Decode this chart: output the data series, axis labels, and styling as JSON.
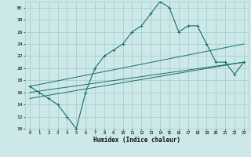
{
  "xlabel": "Humidex (Indice chaleur)",
  "bg_color": "#cce8e8",
  "grid_color": "#aacece",
  "line_color": "#1a6e6a",
  "xlim": [
    -0.5,
    23.5
  ],
  "ylim": [
    10,
    31
  ],
  "yticks": [
    10,
    12,
    14,
    16,
    18,
    20,
    22,
    24,
    26,
    28,
    30
  ],
  "xticks": [
    0,
    1,
    2,
    3,
    4,
    5,
    6,
    7,
    8,
    9,
    10,
    11,
    12,
    13,
    14,
    15,
    16,
    17,
    18,
    19,
    20,
    21,
    22,
    23
  ],
  "series1_x": [
    0,
    1,
    2,
    3,
    4,
    5,
    6,
    7,
    8,
    9,
    10,
    11,
    12,
    13,
    14,
    15,
    16,
    17,
    18,
    19,
    20,
    21,
    22,
    23
  ],
  "series1_y": [
    17,
    16,
    15,
    14,
    12,
    10,
    16,
    20,
    22,
    23,
    24,
    26,
    27,
    29,
    31,
    30,
    26,
    27,
    27,
    24,
    21,
    21,
    19,
    21
  ],
  "series2_x": [
    0,
    23
  ],
  "series2_y": [
    17,
    24
  ],
  "series3_x": [
    0,
    23
  ],
  "series3_y": [
    16,
    21
  ],
  "series4_x": [
    0,
    23
  ],
  "series4_y": [
    15,
    21
  ]
}
